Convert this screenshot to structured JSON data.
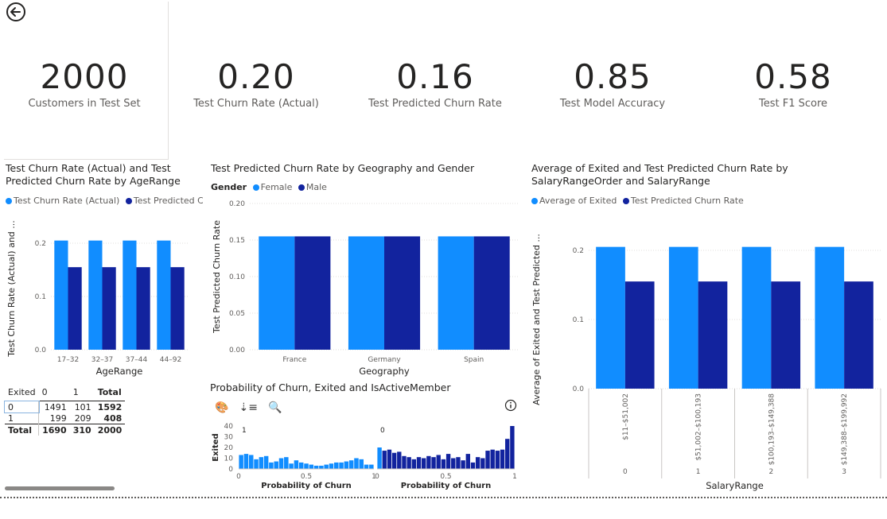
{
  "kpis": [
    {
      "value": "2000",
      "label": "Customers in Test Set"
    },
    {
      "value": "0.20",
      "label": "Test Churn Rate (Actual)"
    },
    {
      "value": "0.16",
      "label": "Test Predicted Churn Rate"
    },
    {
      "value": "0.85",
      "label": "Test Model Accuracy"
    },
    {
      "value": "0.58",
      "label": "Test F1 Score"
    }
  ],
  "colors": {
    "light": "#118dff",
    "dark": "#12239e",
    "grid": "#e1dfdd"
  },
  "icons": {
    "back": "back-arrow-circle-icon"
  },
  "chart1": {
    "title": "Test Churn Rate (Actual) and Test Predicted Churn Rate by AgeRange",
    "legend": [
      "Test Churn Rate (Actual)",
      "Test Predicted C..."
    ]
  },
  "chart2": {
    "title": "Test Predicted Churn Rate by Geography and Gender",
    "legend_title": "Gender",
    "legend": [
      "Female",
      "Male"
    ]
  },
  "chart3": {
    "title": "Average of Exited and Test Predicted Churn Rate by SalaryRangeOrder and SalaryRange",
    "legend": [
      "Average of Exited",
      "Test Predicted Churn Rate"
    ]
  },
  "chart4": {
    "title": "Probability of Churn, Exited and IsActiveMember",
    "toolbar": [
      "palette-icon",
      "sort-icon",
      "zoom-icon",
      "info-icon"
    ]
  },
  "matrix": {
    "header": [
      "Exited",
      "0",
      "1",
      "Total"
    ],
    "rows": [
      [
        "0",
        "1491",
        "101",
        "1592"
      ],
      [
        "1",
        "199",
        "209",
        "408"
      ],
      [
        "Total",
        "1690",
        "310",
        "2000"
      ]
    ]
  },
  "chart_data": [
    {
      "type": "bar",
      "title": "Test Churn Rate (Actual) and Test Predicted Churn Rate by AgeRange",
      "categories": [
        "17–32",
        "32–37",
        "37–44",
        "44–92"
      ],
      "series": [
        {
          "name": "Test Churn Rate (Actual)",
          "values": [
            0.205,
            0.205,
            0.205,
            0.205
          ]
        },
        {
          "name": "Test Predicted Churn Rate",
          "values": [
            0.155,
            0.155,
            0.155,
            0.155
          ]
        }
      ],
      "xlabel": "AgeRange",
      "ylabel": "Test Churn Rate (Actual) and ...",
      "ylim": [
        0,
        0.2
      ],
      "yticks": [
        "0.0",
        "0.1",
        "0.2"
      ],
      "legend": "top",
      "grid": true
    },
    {
      "type": "bar",
      "title": "Test Predicted Churn Rate by Geography and Gender",
      "categories": [
        "France",
        "Germany",
        "Spain"
      ],
      "series": [
        {
          "name": "Female",
          "values": [
            0.155,
            0.155,
            0.155
          ]
        },
        {
          "name": "Male",
          "values": [
            0.155,
            0.155,
            0.155
          ]
        }
      ],
      "xlabel": "Geography",
      "ylabel": "Test Predicted Churn Rate",
      "ylim": [
        0,
        0.2
      ],
      "yticks": [
        "0.00",
        "0.05",
        "0.10",
        "0.15",
        "0.20"
      ],
      "legend": "top",
      "grid": true
    },
    {
      "type": "bar",
      "title": "Average of Exited and Test Predicted Churn Rate by SalaryRangeOrder and SalaryRange",
      "categories": [
        "$11–$51,002",
        "$51,002–$100,193",
        "$100,193–$149,388",
        "$149,388–$199,992"
      ],
      "group_labels": [
        "0",
        "1",
        "2",
        "3"
      ],
      "series": [
        {
          "name": "Average of Exited",
          "values": [
            0.205,
            0.205,
            0.205,
            0.205
          ]
        },
        {
          "name": "Test Predicted Churn Rate",
          "values": [
            0.155,
            0.155,
            0.155,
            0.155
          ]
        }
      ],
      "xlabel": "SalaryRange",
      "ylabel": "Average of Exited and Test Predicted ...",
      "ylim": [
        0,
        0.2
      ],
      "yticks": [
        "0.0",
        "0.1",
        "0.2"
      ],
      "legend": "top",
      "grid": true
    },
    {
      "type": "bar",
      "title": "Probability of Churn, Exited and IsActiveMember",
      "panels": [
        {
          "label": "1",
          "xlabel": "Probability of Churn",
          "xticks": [
            "0",
            "0.5",
            "1"
          ],
          "values": [
            13,
            14,
            13,
            9,
            11,
            12,
            6,
            7,
            10,
            11,
            5,
            8,
            6,
            5,
            4,
            3,
            3,
            4,
            5,
            6,
            6,
            7,
            8,
            10,
            9,
            4,
            4
          ]
        },
        {
          "label": "0",
          "xlabel": "Probability of Churn",
          "xticks": [
            "0",
            "0.5",
            "1"
          ],
          "values": [
            20,
            17,
            18,
            15,
            16,
            12,
            11,
            9,
            11,
            10,
            12,
            11,
            13,
            9,
            14,
            10,
            11,
            8,
            14,
            6,
            11,
            10,
            17,
            18,
            17,
            18,
            28,
            40
          ]
        }
      ],
      "ylabel": "Exited",
      "yticks": [
        "0",
        "10",
        "20",
        "30",
        "40"
      ],
      "ylim": [
        0,
        40
      ]
    }
  ]
}
